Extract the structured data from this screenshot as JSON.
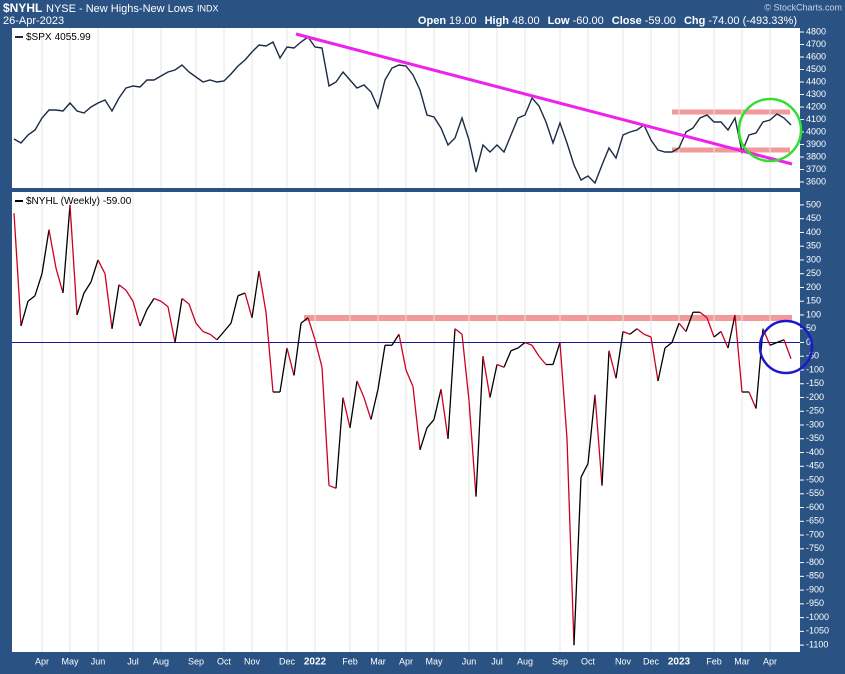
{
  "header": {
    "symbol": "$NYHL",
    "exchange": "NYSE - New Highs-New Lows",
    "kind": "INDX",
    "date": "26-Apr-2023",
    "quote": [
      {
        "label": "Open",
        "value": "19.00"
      },
      {
        "label": "High",
        "value": "48.00"
      },
      {
        "label": "Low",
        "value": "-60.00"
      },
      {
        "label": "Close",
        "value": "-59.00"
      },
      {
        "label": "Chg",
        "value": "-74.00 (-493.33%)"
      }
    ],
    "credit": "© StockCharts.com"
  },
  "chart_data": [
    {
      "type": "line",
      "ylim": [
        3552,
        4832
      ],
      "yticks": [
        3600,
        3700,
        3800,
        3900,
        4000,
        4100,
        4200,
        4300,
        4400,
        4500,
        4600,
        4700,
        4800
      ],
      "xgrid": true,
      "series": [
        {
          "name": "$SPX",
          "legend_value": "4055.99",
          "color": "#1c2b44",
          "values": [
            3944,
            3912,
            3976,
            4016,
            4112,
            4176,
            4176,
            4168,
            4232,
            4168,
            4152,
            4200,
            4232,
            4256,
            4168,
            4272,
            4352,
            4368,
            4360,
            4416,
            4416,
            4448,
            4480,
            4496,
            4536,
            4480,
            4440,
            4400,
            4416,
            4400,
            4408,
            4464,
            4528,
            4576,
            4640,
            4696,
            4688,
            4720,
            4592,
            4680,
            4672,
            4720,
            4760,
            4680,
            4672,
            4368,
            4400,
            4480,
            4416,
            4352,
            4376,
            4320,
            4192,
            4416,
            4512,
            4536,
            4528,
            4456,
            4336,
            4136,
            4120,
            4032,
            3896,
            3952,
            4112,
            3936,
            3680,
            3896,
            3840,
            3896,
            3840,
            3976,
            4112,
            4136,
            4272,
            4208,
            4080,
            3912,
            4072,
            3912,
            3736,
            3616,
            3648,
            3592,
            3736,
            3872,
            3792,
            3976,
            4000,
            4016,
            4056,
            3936,
            3856,
            3840,
            3840,
            3872,
            4000,
            4032,
            4112,
            4136,
            4080,
            4080,
            4016,
            4112,
            3840,
            3976,
            3992,
            4080,
            4096,
            4144,
            4112,
            4055.99
          ]
        }
      ]
    },
    {
      "type": "line",
      "ylim": [
        -1125,
        547
      ],
      "yticks": [
        500,
        450,
        400,
        350,
        300,
        250,
        200,
        150,
        100,
        50,
        0,
        -50,
        -100,
        -150,
        -200,
        -250,
        -300,
        -350,
        -400,
        -450,
        -500,
        -550,
        -600,
        -650,
        -700,
        -750,
        -800,
        -850,
        -900,
        -950,
        -1000,
        -1050,
        -1100
      ],
      "xgrid": true,
      "zero_line": true,
      "color_up": "#000000",
      "color_down": "#cc0022",
      "zero_color": "#1a1a8c",
      "categories": [
        null,
        null,
        null,
        null,
        "Apr",
        null,
        null,
        null,
        "May",
        null,
        null,
        null,
        "Jun",
        null,
        null,
        null,
        null,
        "Jul",
        null,
        null,
        null,
        "Aug",
        null,
        null,
        null,
        null,
        "Sep",
        null,
        null,
        null,
        "Oct",
        null,
        null,
        null,
        "Nov",
        null,
        null,
        null,
        null,
        "Dec",
        null,
        null,
        null,
        "2022",
        null,
        null,
        null,
        null,
        "Feb",
        null,
        null,
        null,
        "Mar",
        null,
        null,
        null,
        "Apr",
        null,
        null,
        null,
        "May",
        null,
        null,
        null,
        null,
        "Jun",
        null,
        null,
        null,
        "Jul",
        null,
        null,
        null,
        "Aug",
        null,
        null,
        null,
        null,
        "Sep",
        null,
        null,
        null,
        "Oct",
        null,
        null,
        null,
        null,
        "Nov",
        null,
        null,
        null,
        "Dec",
        null,
        null,
        null,
        "2023",
        null,
        null,
        null,
        null,
        "Feb",
        null,
        null,
        null,
        "Mar",
        null,
        null,
        null,
        "Apr",
        null,
        null,
        null
      ],
      "series": [
        {
          "name": "$NYHL (Weekly)",
          "legend_value": "-59.00",
          "values": [
            470,
            60,
            150,
            170,
            250,
            410,
            270,
            180,
            500,
            100,
            180,
            220,
            300,
            250,
            50,
            210,
            190,
            150,
            60,
            120,
            160,
            150,
            130,
            0,
            160,
            140,
            70,
            40,
            30,
            10,
            40,
            70,
            170,
            180,
            90,
            260,
            110,
            -180,
            -180,
            -20,
            -120,
            70,
            90,
            10,
            -90,
            -520,
            -530,
            -200,
            -310,
            -140,
            -200,
            -280,
            -170,
            -10,
            -10,
            30,
            -100,
            -160,
            -390,
            -310,
            -280,
            -170,
            -350,
            50,
            30,
            -210,
            -560,
            -50,
            -200,
            -80,
            -90,
            -30,
            -20,
            0,
            -10,
            -50,
            -80,
            -80,
            0,
            -350,
            -1100,
            -490,
            -440,
            -190,
            -520,
            -30,
            -130,
            40,
            30,
            50,
            30,
            20,
            -140,
            -20,
            0,
            70,
            40,
            110,
            110,
            90,
            20,
            40,
            -20,
            100,
            -180,
            -180,
            -240,
            50,
            -10,
            0,
            10,
            -59
          ]
        }
      ]
    }
  ]
}
